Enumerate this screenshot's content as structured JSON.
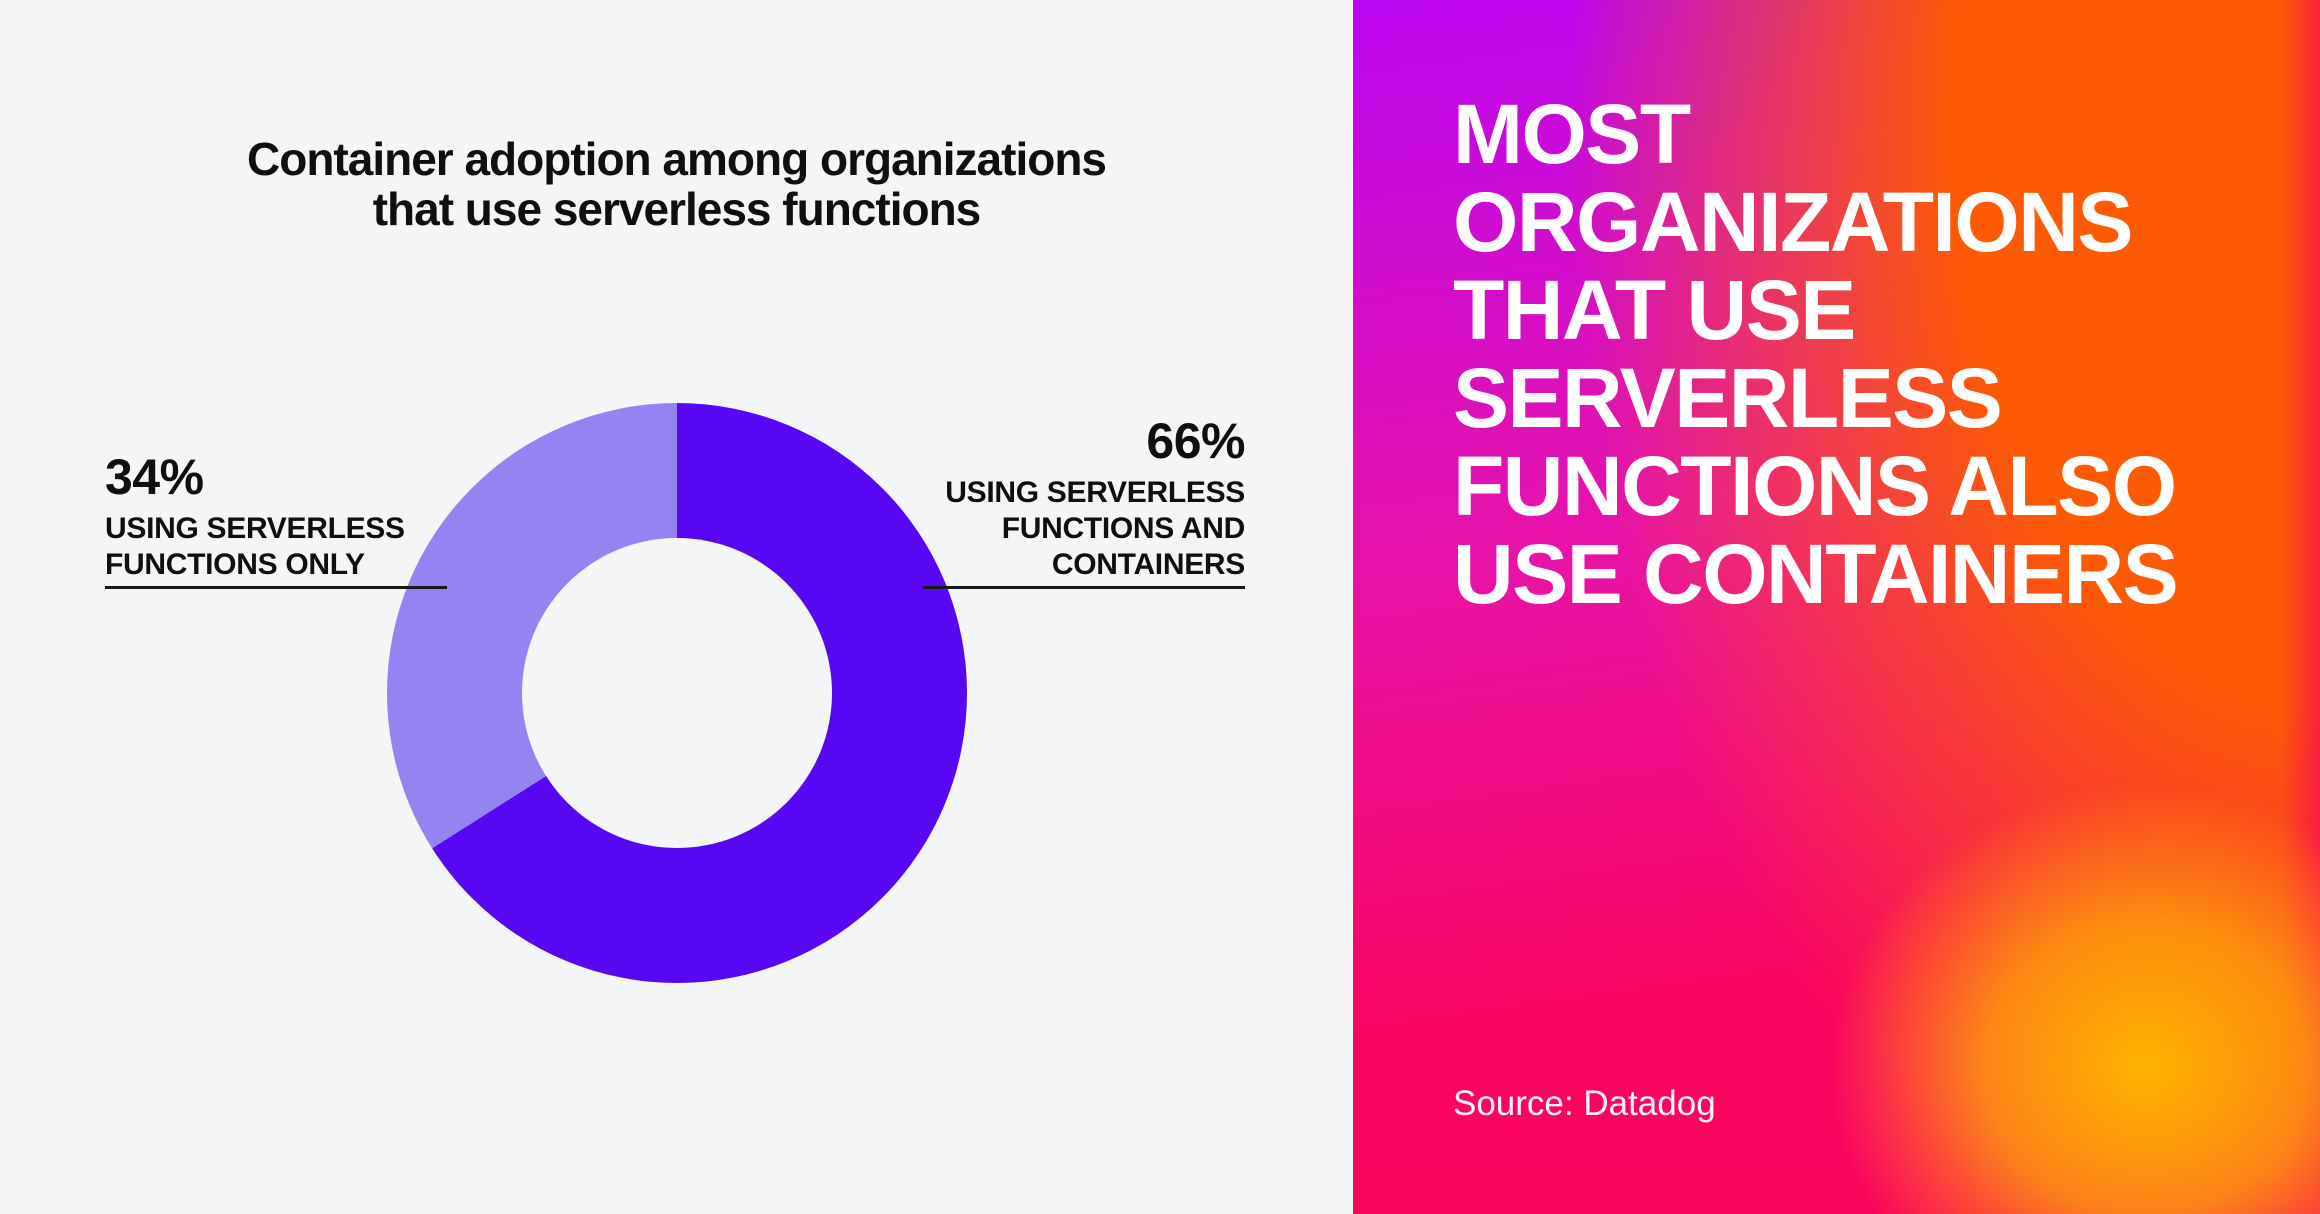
{
  "chart_data": {
    "type": "pie",
    "subtype": "donut",
    "title": "Container adoption among organizations that use serverless functions",
    "slices": [
      {
        "label": "USING SERVERLESS FUNCTIONS AND CONTAINERS",
        "value": 66,
        "unit": "%",
        "color": "#5907f2"
      },
      {
        "label": "USING SERVERLESS FUNCTIONS ONLY",
        "value": 34,
        "unit": "%",
        "color": "#9484f2"
      }
    ],
    "start_angle_deg": 0,
    "direction": "clockwise",
    "hole_color": "#f4f5f7",
    "legend_position": "callouts-left-right",
    "grid": false
  },
  "left_panel": {
    "background": "#f4f5f7",
    "title_lines": [
      "Container adoption among organizations",
      "that use serverless functions"
    ],
    "callout_left": {
      "pct": "34%",
      "lines": [
        "USING SERVERLESS",
        "FUNCTIONS ONLY"
      ]
    },
    "callout_right": {
      "pct": "66%",
      "lines": [
        "USING SERVERLESS",
        "FUNCTIONS AND",
        "CONTAINERS"
      ]
    }
  },
  "right_panel": {
    "headline_lines": [
      "MOST",
      "ORGANIZATIONS",
      "THAT USE",
      "SERVERLESS",
      "FUNCTIONS ALSO",
      "USE CONTAINERS"
    ],
    "source": "Source: Datadog",
    "headline_color": "#ffffff",
    "gradient_colors": {
      "top_left": "#bb06f0",
      "mid_left": "#e713a9",
      "bottom_left": "#fa0460",
      "top_right": "#fc5a04",
      "glow_bottom_right": "#ffb300",
      "edge_pink": "#fa0457"
    }
  }
}
